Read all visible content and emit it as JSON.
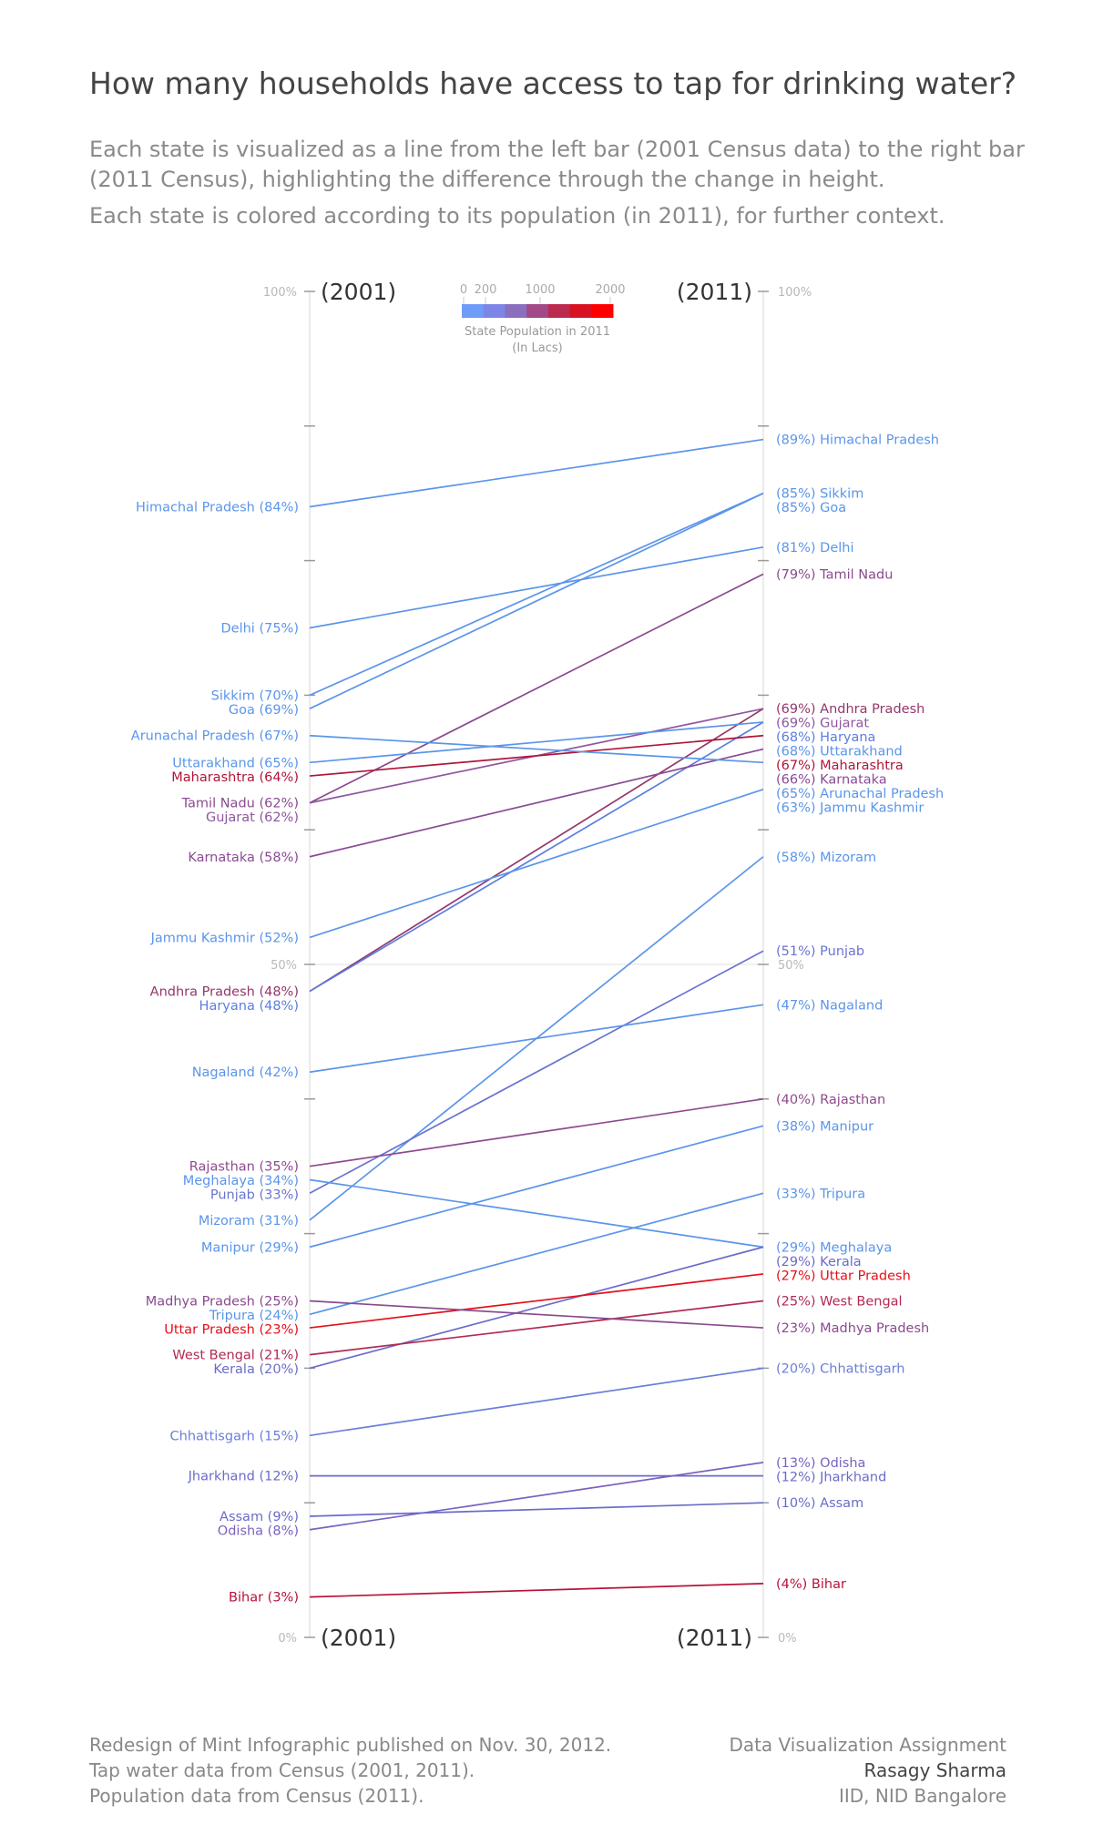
{
  "title": "How many households have access to tap for drinking water?",
  "subtitle_1": "Each state is visualized as a line from the left bar (2001 Census data) to the right bar (2011 Census), highlighting the difference through the change in height.",
  "subtitle_2": "Each state is colored according to its population (in 2011), for further context.",
  "footer_left": [
    "Redesign of Mint Infographic published on Nov. 30, 2012.",
    "Tap water data from Census (2001, 2011).",
    "Population data from Census (2011)."
  ],
  "footer_right": [
    "Data Visualization Assignment",
    "Rasagy Sharma",
    "IID, NID Bangalore"
  ],
  "chart_data": {
    "type": "slope",
    "left_label": "(2001)",
    "right_label": "(2011)",
    "y_range": [
      0,
      100
    ],
    "y_unit": "%",
    "y_tick_labels": [
      "0%",
      "50%",
      "100%"
    ],
    "legend": {
      "title": "State Population in 2011",
      "subtitle": "(In Lacs)",
      "ticks": [
        "0",
        "200",
        "1000",
        "2000"
      ],
      "colors": [
        "#6f9cf8",
        "#7d86e6",
        "#8a6fbf",
        "#a24a86",
        "#bb2a4f",
        "#d81222",
        "#ff0000"
      ]
    },
    "states": [
      {
        "name": "Himachal Pradesh",
        "y2001": 84,
        "y2011": 89,
        "color": "#5b95ea"
      },
      {
        "name": "Sikkim",
        "y2001": 70,
        "y2011": 85,
        "color": "#5b95ea"
      },
      {
        "name": "Goa",
        "y2001": 69,
        "y2011": 85,
        "color": "#5b95ea"
      },
      {
        "name": "Delhi",
        "y2001": 75,
        "y2011": 81,
        "color": "#5b95ea"
      },
      {
        "name": "Tamil Nadu",
        "y2001": 62,
        "y2011": 79,
        "color": "#8a4a8e"
      },
      {
        "name": "Andhra Pradesh",
        "y2001": 48,
        "y2011": 69,
        "color": "#93386a"
      },
      {
        "name": "Gujarat",
        "y2001": 62,
        "y2011": 69,
        "color": "#8f56a0"
      },
      {
        "name": "Haryana",
        "y2001": 48,
        "y2011": 68,
        "color": "#5b7ee0"
      },
      {
        "name": "Uttarakhand",
        "y2001": 65,
        "y2011": 68,
        "color": "#5b95ea"
      },
      {
        "name": "Maharashtra",
        "y2001": 64,
        "y2011": 67,
        "color": "#b0153a"
      },
      {
        "name": "Karnataka",
        "y2001": 58,
        "y2011": 66,
        "color": "#8a4a96"
      },
      {
        "name": "Arunachal Pradesh",
        "y2001": 67,
        "y2011": 65,
        "color": "#5b95ea"
      },
      {
        "name": "Jammu Kashmir",
        "y2001": 52,
        "y2011": 63,
        "color": "#5b95ea"
      },
      {
        "name": "Mizoram",
        "y2001": 31,
        "y2011": 58,
        "color": "#5b95ea"
      },
      {
        "name": "Punjab",
        "y2001": 33,
        "y2011": 51,
        "color": "#6a74d0"
      },
      {
        "name": "Nagaland",
        "y2001": 42,
        "y2011": 47,
        "color": "#5b95ea"
      },
      {
        "name": "Rajasthan",
        "y2001": 35,
        "y2011": 40,
        "color": "#8e4a8c"
      },
      {
        "name": "Manipur",
        "y2001": 29,
        "y2011": 38,
        "color": "#5b95ea"
      },
      {
        "name": "Tripura",
        "y2001": 24,
        "y2011": 33,
        "color": "#5b95ea"
      },
      {
        "name": "Meghalaya",
        "y2001": 34,
        "y2011": 29,
        "color": "#5b95ea"
      },
      {
        "name": "Kerala",
        "y2001": 20,
        "y2011": 29,
        "color": "#6a6cc8"
      },
      {
        "name": "Uttar Pradesh",
        "y2001": 23,
        "y2011": 27,
        "color": "#e3101a"
      },
      {
        "name": "West Bengal",
        "y2001": 21,
        "y2011": 25,
        "color": "#b12a52"
      },
      {
        "name": "Madhya Pradesh",
        "y2001": 25,
        "y2011": 23,
        "color": "#8a4a8e"
      },
      {
        "name": "Chhattisgarh",
        "y2001": 15,
        "y2011": 20,
        "color": "#6a7fd8"
      },
      {
        "name": "Odisha",
        "y2001": 8,
        "y2011": 13,
        "color": "#7a62c0"
      },
      {
        "name": "Jharkhand",
        "y2001": 12,
        "y2011": 12,
        "color": "#6a6cc8"
      },
      {
        "name": "Assam",
        "y2001": 9,
        "y2011": 10,
        "color": "#6a6cc8"
      },
      {
        "name": "Bihar",
        "y2001": 3,
        "y2011": 4,
        "color": "#b8123a"
      }
    ]
  }
}
